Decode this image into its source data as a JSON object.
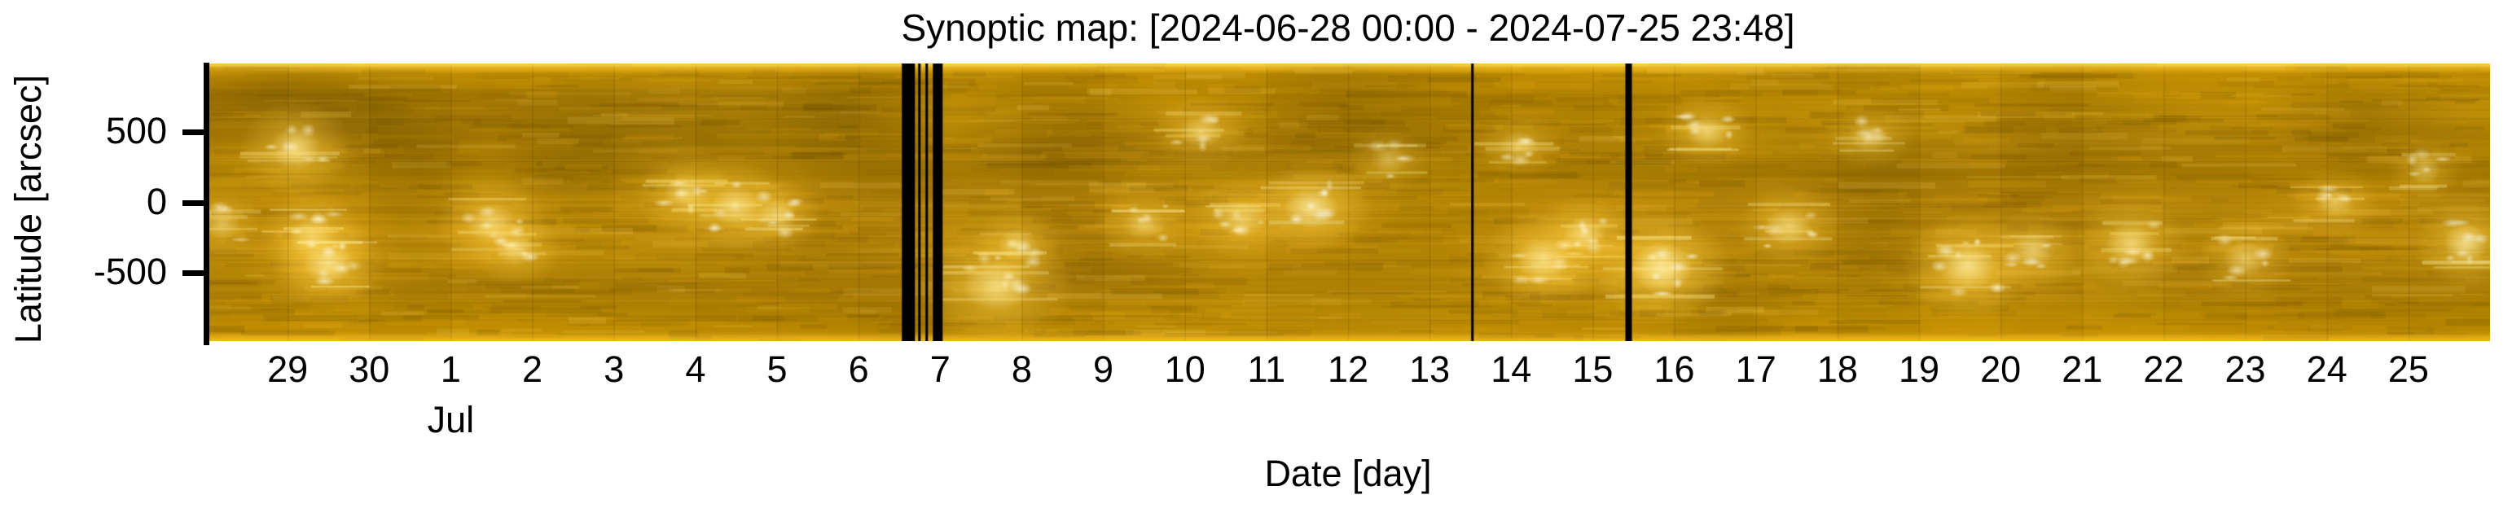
{
  "chart_data": {
    "type": "heatmap",
    "title": "Synoptic map: [2024-06-28 00:00 - 2024-07-25 23:48]",
    "subtitle": "",
    "xlabel": "Date [day]",
    "ylabel": "Latitude [arcsec]",
    "time_start": "2024-06-28 00:00",
    "time_end": "2024-07-25 23:48",
    "x_range_days": [
      0,
      28
    ],
    "y_range_arcsec": [
      -980,
      980
    ],
    "grid": false,
    "legend": "none",
    "colormap": "solar-gold-EUV",
    "palette": {
      "base": "#b98700",
      "dark": "#6e5200",
      "mid": "#c99500",
      "bright": "#ffcf33",
      "hot": "#fff3c4",
      "gap_color": "#000000",
      "text": "#000000",
      "background": "#ffffff"
    },
    "x_ticks": [
      {
        "label": "29",
        "day": 1
      },
      {
        "label": "30",
        "day": 2
      },
      {
        "label": "1",
        "day": 3
      },
      {
        "label": "2",
        "day": 4
      },
      {
        "label": "3",
        "day": 5
      },
      {
        "label": "4",
        "day": 6
      },
      {
        "label": "5",
        "day": 7
      },
      {
        "label": "6",
        "day": 8
      },
      {
        "label": "7",
        "day": 9
      },
      {
        "label": "8",
        "day": 10
      },
      {
        "label": "9",
        "day": 11
      },
      {
        "label": "10",
        "day": 12
      },
      {
        "label": "11",
        "day": 13
      },
      {
        "label": "12",
        "day": 14
      },
      {
        "label": "13",
        "day": 15
      },
      {
        "label": "14",
        "day": 16
      },
      {
        "label": "15",
        "day": 17
      },
      {
        "label": "16",
        "day": 18
      },
      {
        "label": "17",
        "day": 19
      },
      {
        "label": "18",
        "day": 20
      },
      {
        "label": "19",
        "day": 21
      },
      {
        "label": "20",
        "day": 22
      },
      {
        "label": "21",
        "day": 23
      },
      {
        "label": "22",
        "day": 24
      },
      {
        "label": "23",
        "day": 25
      },
      {
        "label": "24",
        "day": 26
      },
      {
        "label": "25",
        "day": 27
      }
    ],
    "x_month_label": {
      "label": "Jul",
      "day": 3
    },
    "y_ticks": [
      {
        "label": "500",
        "value": 500
      },
      {
        "label": "0",
        "value": 0
      },
      {
        "label": "-500",
        "value": -500
      }
    ],
    "data_gaps_days": [
      [
        8.53,
        8.69
      ],
      [
        8.73,
        8.76
      ],
      [
        8.82,
        8.85
      ],
      [
        8.91,
        9.03
      ],
      [
        15.51,
        15.54
      ],
      [
        17.4,
        17.48
      ]
    ],
    "bright_regions": [
      {
        "day": 0.2,
        "lat": -150,
        "rx": 50,
        "ry": 45,
        "intensity": 0.45
      },
      {
        "day": 1.1,
        "lat": 380,
        "rx": 70,
        "ry": 60,
        "intensity": 0.7
      },
      {
        "day": 1.3,
        "lat": -250,
        "rx": 65,
        "ry": 60,
        "intensity": 0.7
      },
      {
        "day": 1.5,
        "lat": -430,
        "rx": 70,
        "ry": 55,
        "intensity": 0.8
      },
      {
        "day": 3.5,
        "lat": -150,
        "rx": 70,
        "ry": 55,
        "intensity": 0.65
      },
      {
        "day": 3.8,
        "lat": -330,
        "rx": 55,
        "ry": 45,
        "intensity": 0.55
      },
      {
        "day": 5.9,
        "lat": 60,
        "rx": 65,
        "ry": 50,
        "intensity": 0.6
      },
      {
        "day": 6.5,
        "lat": -30,
        "rx": 70,
        "ry": 55,
        "intensity": 0.75
      },
      {
        "day": 7.0,
        "lat": -90,
        "rx": 55,
        "ry": 45,
        "intensity": 0.6
      },
      {
        "day": 9.7,
        "lat": -590,
        "rx": 95,
        "ry": 70,
        "intensity": 0.75
      },
      {
        "day": 9.95,
        "lat": -300,
        "rx": 55,
        "ry": 45,
        "intensity": 0.5
      },
      {
        "day": 11.5,
        "lat": -150,
        "rx": 60,
        "ry": 45,
        "intensity": 0.45
      },
      {
        "day": 12.2,
        "lat": 500,
        "rx": 60,
        "ry": 45,
        "intensity": 0.5
      },
      {
        "day": 12.7,
        "lat": -120,
        "rx": 70,
        "ry": 50,
        "intensity": 0.6
      },
      {
        "day": 13.55,
        "lat": -40,
        "rx": 75,
        "ry": 55,
        "intensity": 0.9
      },
      {
        "day": 14.5,
        "lat": 300,
        "rx": 50,
        "ry": 40,
        "intensity": 0.4
      },
      {
        "day": 16.1,
        "lat": 400,
        "rx": 55,
        "ry": 40,
        "intensity": 0.45
      },
      {
        "day": 16.4,
        "lat": -400,
        "rx": 75,
        "ry": 60,
        "intensity": 0.8
      },
      {
        "day": 16.9,
        "lat": -230,
        "rx": 60,
        "ry": 50,
        "intensity": 0.7
      },
      {
        "day": 17.85,
        "lat": -460,
        "rx": 85,
        "ry": 70,
        "intensity": 0.95
      },
      {
        "day": 18.4,
        "lat": 500,
        "rx": 60,
        "ry": 45,
        "intensity": 0.6
      },
      {
        "day": 19.4,
        "lat": -170,
        "rx": 65,
        "ry": 50,
        "intensity": 0.6
      },
      {
        "day": 20.4,
        "lat": 460,
        "rx": 55,
        "ry": 40,
        "intensity": 0.45
      },
      {
        "day": 21.6,
        "lat": -450,
        "rx": 80,
        "ry": 65,
        "intensity": 0.85
      },
      {
        "day": 22.4,
        "lat": -340,
        "rx": 60,
        "ry": 50,
        "intensity": 0.6
      },
      {
        "day": 23.6,
        "lat": -290,
        "rx": 70,
        "ry": 55,
        "intensity": 0.65
      },
      {
        "day": 25.0,
        "lat": -400,
        "rx": 60,
        "ry": 50,
        "intensity": 0.5
      },
      {
        "day": 26.1,
        "lat": 0,
        "rx": 55,
        "ry": 45,
        "intensity": 0.45
      },
      {
        "day": 27.2,
        "lat": 230,
        "rx": 45,
        "ry": 40,
        "intensity": 0.45
      },
      {
        "day": 27.7,
        "lat": -290,
        "rx": 60,
        "ry": 55,
        "intensity": 0.8
      }
    ],
    "dark_regions": [
      {
        "day": 0.8,
        "lat": 750,
        "rx": 160,
        "ry": 60,
        "intensity": 0.5
      },
      {
        "day": 1.5,
        "lat": 550,
        "rx": 120,
        "ry": 90,
        "intensity": 0.5
      },
      {
        "day": 2.6,
        "lat": 250,
        "rx": 90,
        "ry": 80,
        "intensity": 0.4
      },
      {
        "day": 4.3,
        "lat": 150,
        "rx": 100,
        "ry": 70,
        "intensity": 0.35
      },
      {
        "day": 5.0,
        "lat": 400,
        "rx": 150,
        "ry": 100,
        "intensity": 0.45
      },
      {
        "day": 8.0,
        "lat": 600,
        "rx": 120,
        "ry": 80,
        "intensity": 0.5
      },
      {
        "day": 10.5,
        "lat": 500,
        "rx": 140,
        "ry": 90,
        "intensity": 0.5
      },
      {
        "day": 14.0,
        "lat": 650,
        "rx": 130,
        "ry": 80,
        "intensity": 0.45
      },
      {
        "day": 18.5,
        "lat": -700,
        "rx": 110,
        "ry": 70,
        "intensity": 0.35
      },
      {
        "day": 20.5,
        "lat": 100,
        "rx": 130,
        "ry": 80,
        "intensity": 0.35
      },
      {
        "day": 23.0,
        "lat": 550,
        "rx": 140,
        "ry": 90,
        "intensity": 0.45
      },
      {
        "day": 26.5,
        "lat": 600,
        "rx": 130,
        "ry": 85,
        "intensity": 0.45
      }
    ],
    "texture_seed": 20240628
  }
}
